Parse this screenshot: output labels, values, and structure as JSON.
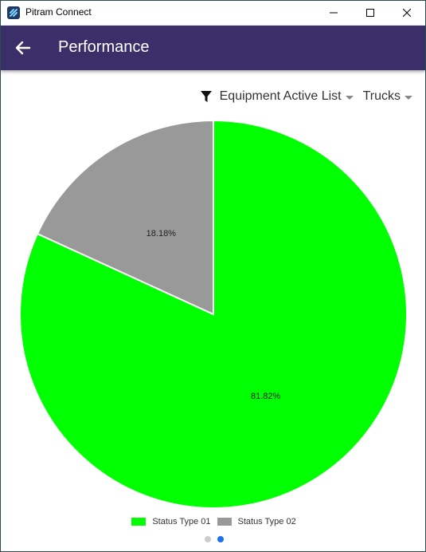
{
  "window": {
    "title": "Pitram Connect"
  },
  "header": {
    "title": "Performance",
    "color": "#3a2f68"
  },
  "filters": {
    "list_label": "Equipment Active List",
    "type_label": "Trucks"
  },
  "chart_data": {
    "type": "pie",
    "categories": [
      "Status Type 01",
      "Status Type 02"
    ],
    "values": [
      81.82,
      18.18
    ],
    "labels": [
      "81.82%",
      "18.18%"
    ],
    "colors": [
      "#00ff00",
      "#999999"
    ],
    "legend": "bottom",
    "start_angle": "12 o'clock",
    "direction": "clockwise"
  },
  "pager": {
    "count": 2,
    "active": 1
  }
}
